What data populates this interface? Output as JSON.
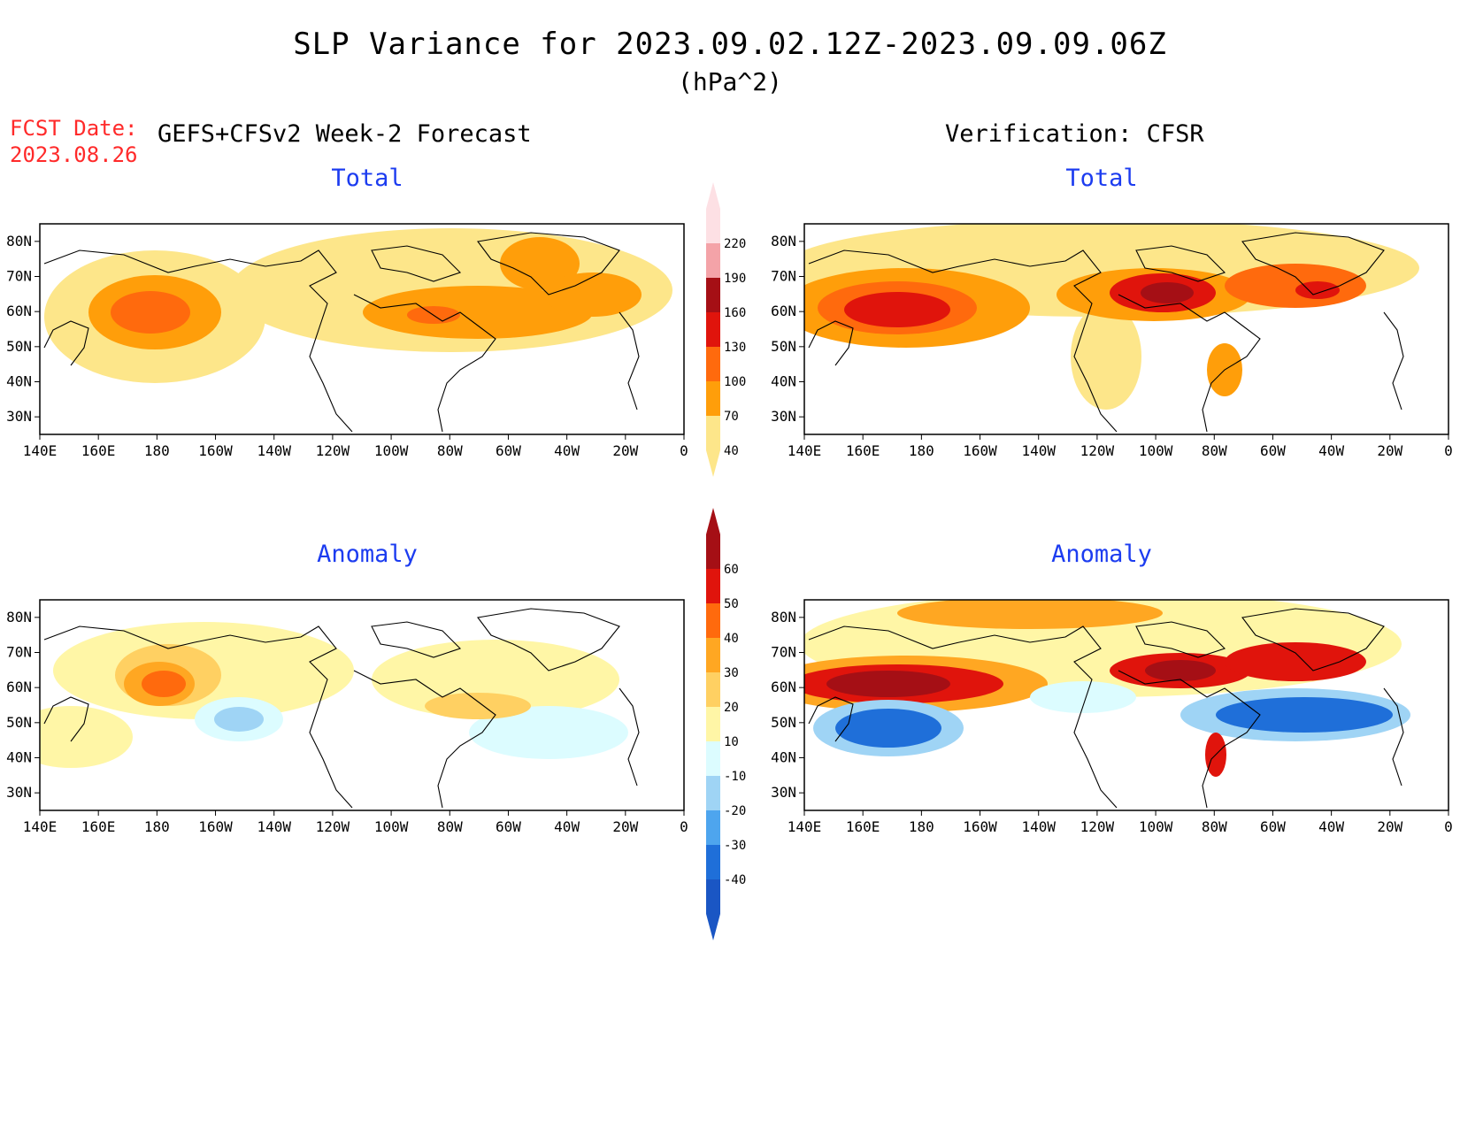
{
  "header": {
    "title": "SLP Variance for 2023.09.02.12Z-2023.09.09.06Z",
    "units": "(hPa^2)",
    "fcst_label": "FCST Date:",
    "fcst_date": "2023.08.26",
    "left_heading": "GEFS+CFSv2 Week-2 Forecast",
    "right_heading": "Verification: CFSR"
  },
  "panels": {
    "fcst_total": {
      "title": "Total"
    },
    "verif_total": {
      "title": "Total"
    },
    "fcst_anom": {
      "title": "Anomaly"
    },
    "verif_anom": {
      "title": "Anomaly"
    }
  },
  "axes": {
    "lon_labels": [
      "140E",
      "160E",
      "180",
      "160W",
      "140W",
      "120W",
      "100W",
      "80W",
      "60W",
      "40W",
      "20W",
      "0"
    ],
    "lat_labels": [
      "80N",
      "70N",
      "60N",
      "50N",
      "40N",
      "30N"
    ]
  },
  "colorbars": {
    "total": {
      "levels": [
        "220",
        "190",
        "160",
        "130",
        "100",
        "70",
        "40"
      ],
      "colors": [
        "#fde0e4",
        "#f4a3a8",
        "#a50f15",
        "#e0140c",
        "#ff6a0d",
        "#ff9e0a",
        "#fde68a"
      ]
    },
    "anomaly": {
      "levels": [
        "60",
        "50",
        "40",
        "30",
        "20",
        "10",
        "-10",
        "-20",
        "-30",
        "-40"
      ],
      "colors_pos": [
        "#a50f15",
        "#e0140c",
        "#ff6a0d",
        "#ffa722",
        "#ffd062",
        "#fff6a6"
      ],
      "colors_neg": [
        "#dcfcff",
        "#9fd4f5",
        "#4ea5ee",
        "#1f6fd9",
        "#1a56c4"
      ]
    }
  }
}
